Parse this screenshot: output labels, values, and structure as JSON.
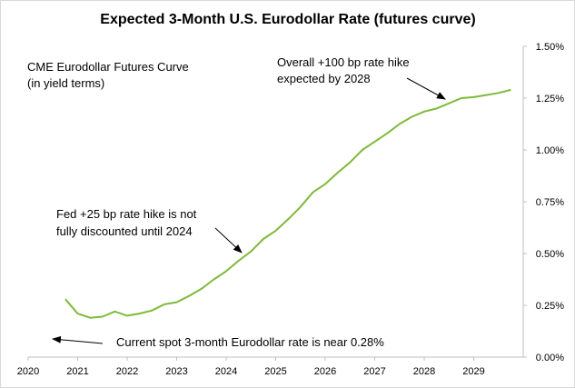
{
  "chart_data": {
    "type": "line",
    "title": "Expected 3-Month U.S. Eurodollar Rate (futures curve)",
    "xlabel": "",
    "ylabel": "",
    "xlim": [
      2020,
      2030
    ],
    "ylim": [
      0,
      1.5
    ],
    "grid": false,
    "x_ticks": [
      "2020",
      "2021",
      "2022",
      "2023",
      "2024",
      "2025",
      "2026",
      "2027",
      "2028",
      "2029"
    ],
    "y_ticks": [
      "0.00%",
      "0.25%",
      "0.50%",
      "0.75%",
      "1.00%",
      "1.25%",
      "1.50%"
    ],
    "line_color": "#7fb93a",
    "series": [
      {
        "name": "",
        "x": [
          2020.75,
          2021.0,
          2021.25,
          2021.5,
          2021.75,
          2022.0,
          2022.25,
          2022.5,
          2022.75,
          2023.0,
          2023.25,
          2023.5,
          2023.75,
          2024.0,
          2024.25,
          2024.5,
          2024.75,
          2025.0,
          2025.25,
          2025.5,
          2025.75,
          2026.0,
          2026.25,
          2026.5,
          2026.75,
          2027.0,
          2027.25,
          2027.5,
          2027.75,
          2028.0,
          2028.25,
          2028.5,
          2028.75,
          2029.0,
          2029.25,
          2029.5,
          2029.75
        ],
        "values": [
          0.28,
          0.21,
          0.19,
          0.195,
          0.22,
          0.2,
          0.21,
          0.225,
          0.255,
          0.265,
          0.295,
          0.33,
          0.375,
          0.415,
          0.465,
          0.51,
          0.57,
          0.61,
          0.665,
          0.725,
          0.795,
          0.835,
          0.89,
          0.94,
          1.0,
          1.04,
          1.08,
          1.125,
          1.16,
          1.185,
          1.2,
          1.225,
          1.25,
          1.255,
          1.265,
          1.275,
          1.29
        ]
      }
    ],
    "annotations": [
      {
        "text_lines": [
          "CME Eurodollar Futures Curve",
          "(in yield terms)"
        ]
      },
      {
        "text_lines": [
          "Overall +100 bp rate hike",
          "expected by 2028"
        ]
      },
      {
        "text_lines": [
          "Fed +25 bp rate hike is not",
          "fully discounted until 2024"
        ]
      },
      {
        "text_lines": [
          "Current spot 3-month  Eurodollar rate is near 0.28%"
        ]
      }
    ]
  }
}
